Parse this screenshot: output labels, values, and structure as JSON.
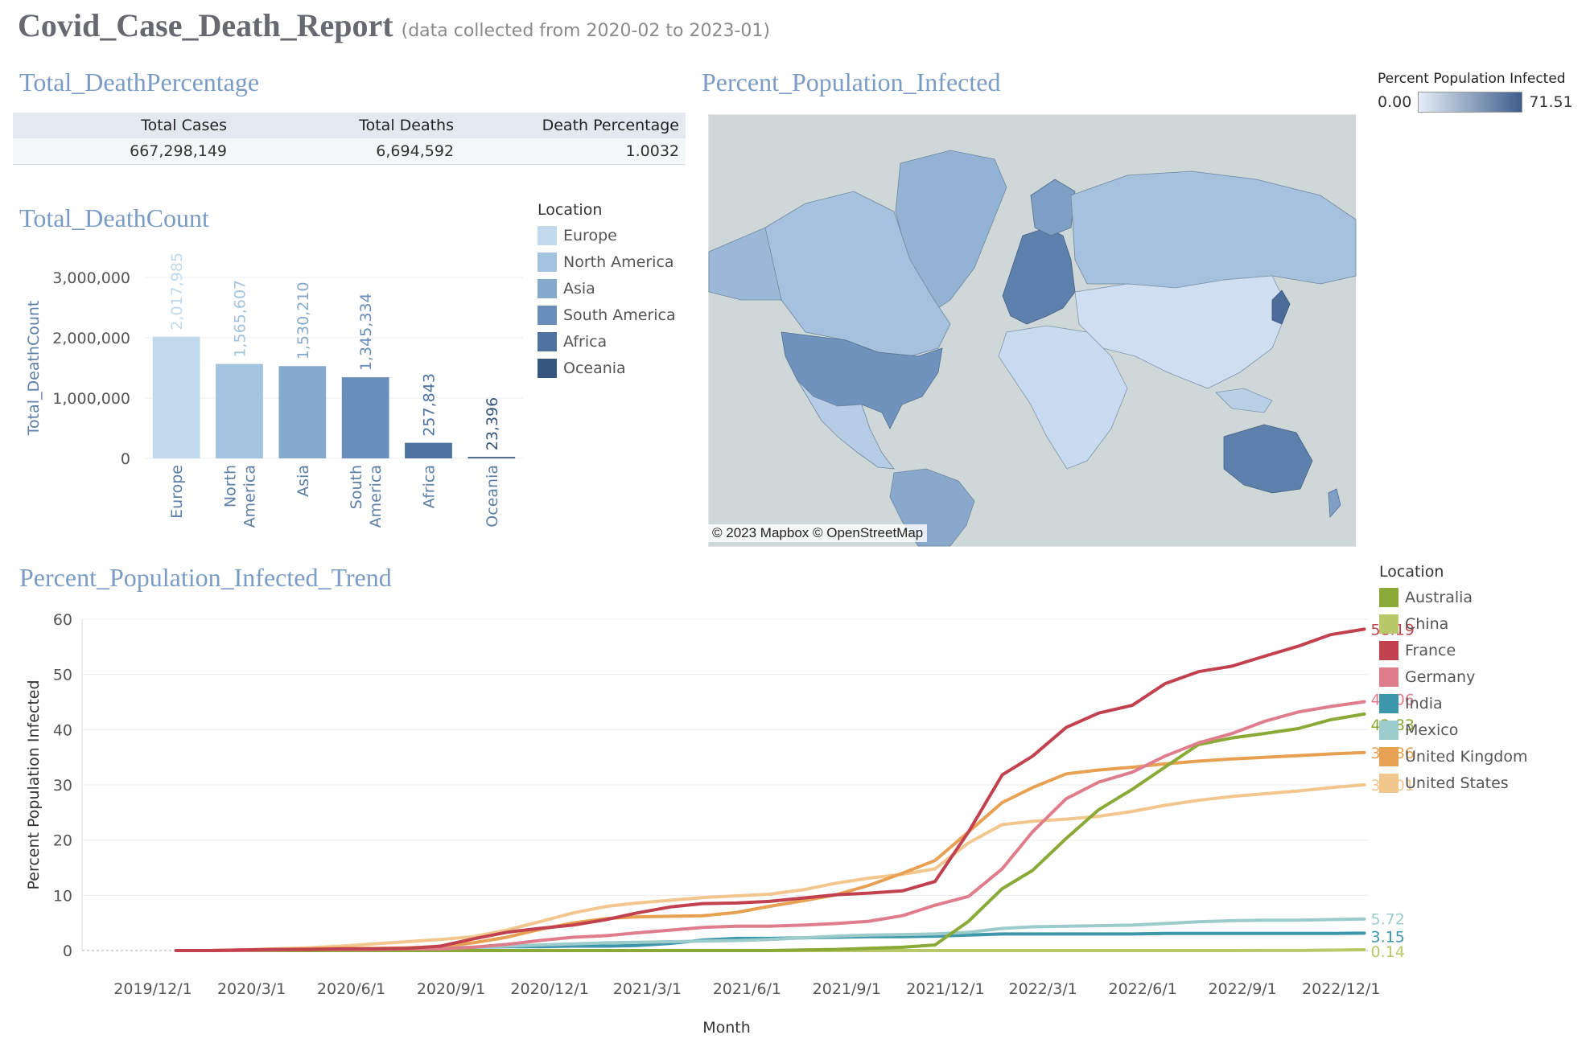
{
  "report": {
    "title": "Covid_Case_Death_Report",
    "subtitle": "(data collected from 2020-02 to 2023-01)"
  },
  "sections": {
    "death_percentage": "Total_DeathPercentage",
    "death_count": "Total_DeathCount",
    "population_infected": "Percent_Population_Infected",
    "trend": "Percent_Population_Infected_Trend"
  },
  "kpi": {
    "headers": [
      "Total Cases",
      "Total Deaths",
      "Death Percentage"
    ],
    "values": [
      "667,298,149",
      "6,694,592",
      "1.0032"
    ]
  },
  "map": {
    "credit": "© 2023 Mapbox © OpenStreetMap",
    "legend_title": "Percent Population Infected",
    "legend_min": "0.00",
    "legend_max": "71.51",
    "colors": {
      "land_low": "#e6eef7",
      "land_high": "#3d5e8a",
      "water": "#cfd8d8"
    }
  },
  "bar_legend": {
    "title": "Location",
    "items": [
      {
        "label": "Europe",
        "color": "#c2d9ec"
      },
      {
        "label": "North America",
        "color": "#a3c3de"
      },
      {
        "label": "Asia",
        "color": "#86a9ce"
      },
      {
        "label": "South America",
        "color": "#6a8ebb"
      },
      {
        "label": "Africa",
        "color": "#4f72a2"
      },
      {
        "label": "Oceania",
        "color": "#35567f"
      }
    ]
  },
  "line_legend": {
    "title": "Location",
    "items": [
      {
        "label": "Australia",
        "color": "#8aa937"
      },
      {
        "label": "China",
        "color": "#b9c969"
      },
      {
        "label": "France",
        "color": "#c2414f"
      },
      {
        "label": "Germany",
        "color": "#e07d8d"
      },
      {
        "label": "India",
        "color": "#3d97aa"
      },
      {
        "label": "Mexico",
        "color": "#9ccbcc"
      },
      {
        "label": "United Kingdom",
        "color": "#e8a152"
      },
      {
        "label": "United States",
        "color": "#f2c78e"
      }
    ]
  },
  "chart_data": [
    {
      "type": "bar",
      "ylabel": "Total_DeathCount",
      "categories": [
        "Europe",
        "North\nAmerica",
        "Asia",
        "South\nAmerica",
        "Africa",
        "Oceania"
      ],
      "values": [
        2017985,
        1565607,
        1530210,
        1345334,
        257843,
        23396
      ],
      "value_labels": [
        "2,017,985",
        "1,565,607",
        "1,530,210",
        "1,345,334",
        "257,843",
        "23,396"
      ],
      "colors": [
        "#c2d9ec",
        "#a3c3de",
        "#86a9ce",
        "#6a8ebb",
        "#4f72a2",
        "#35567f"
      ],
      "label_colors": [
        "#c2d9ec",
        "#a3c3de",
        "#86a9ce",
        "#6a8ebb",
        "#4f72a2",
        "#35567f"
      ],
      "ylim": [
        0,
        3000000
      ],
      "yticks": [
        0,
        1000000,
        2000000,
        3000000
      ],
      "ytick_labels": [
        "0",
        "1,000,000",
        "2,000,000",
        "3,000,000"
      ],
      "grid": true
    },
    {
      "type": "line",
      "xlabel": "Month",
      "ylabel": "Percent Population Infected",
      "x": [
        "2020-01",
        "2020-02",
        "2020-03",
        "2020-04",
        "2020-05",
        "2020-06",
        "2020-07",
        "2020-08",
        "2020-09",
        "2020-10",
        "2020-11",
        "2020-12",
        "2021-01",
        "2021-02",
        "2021-03",
        "2021-04",
        "2021-05",
        "2021-06",
        "2021-07",
        "2021-08",
        "2021-09",
        "2021-10",
        "2021-11",
        "2021-12",
        "2022-01",
        "2022-02",
        "2022-03",
        "2022-04",
        "2022-05",
        "2022-06",
        "2022-07",
        "2022-08",
        "2022-09",
        "2022-10",
        "2022-11",
        "2022-12",
        "2023-01"
      ],
      "xticks": [
        "2019-12",
        "2020-03",
        "2020-06",
        "2020-09",
        "2020-12",
        "2021-03",
        "2021-06",
        "2021-09",
        "2021-12",
        "2022-03",
        "2022-06",
        "2022-09",
        "2022-12"
      ],
      "xtick_labels": [
        "2019/12/1",
        "2020/3/1",
        "2020/6/1",
        "2020/9/1",
        "2020/12/1",
        "2021/3/1",
        "2021/6/1",
        "2021/9/1",
        "2021/12/1",
        "2022/3/1",
        "2022/6/1",
        "2022/9/1",
        "2022/12/1"
      ],
      "ylim": [
        0,
        60
      ],
      "yticks": [
        0,
        10,
        20,
        30,
        40,
        50,
        60
      ],
      "grid": true,
      "series": [
        {
          "name": "France",
          "color": "#c2414f",
          "end_label": "58.19",
          "values": [
            0,
            0,
            0.1,
            0.2,
            0.2,
            0.3,
            0.3,
            0.4,
            0.8,
            2.1,
            3.3,
            4.0,
            4.6,
            5.6,
            6.8,
            7.9,
            8.5,
            8.6,
            8.9,
            9.5,
            10.1,
            10.4,
            10.8,
            12.5,
            21.5,
            31.8,
            35.2,
            40.4,
            43.0,
            44.4,
            48.3,
            50.5,
            51.5,
            53.3,
            55.1,
            57.2,
            58.19
          ]
        },
        {
          "name": "Germany",
          "color": "#e07d8d",
          "end_label": "45.06",
          "values": [
            0,
            0,
            0,
            0.1,
            0.2,
            0.2,
            0.2,
            0.3,
            0.3,
            0.6,
            1.1,
            1.8,
            2.4,
            2.7,
            3.2,
            3.7,
            4.2,
            4.4,
            4.4,
            4.6,
            4.9,
            5.3,
            6.3,
            8.2,
            9.8,
            14.8,
            21.5,
            27.5,
            30.5,
            32.3,
            35.2,
            37.6,
            39.3,
            41.5,
            43.2,
            44.2,
            45.06
          ]
        },
        {
          "name": "Australia",
          "color": "#8aa937",
          "end_label": "42.83",
          "values": [
            0,
            0,
            0,
            0,
            0,
            0,
            0,
            0,
            0,
            0,
            0,
            0,
            0,
            0,
            0,
            0,
            0,
            0,
            0,
            0.1,
            0.2,
            0.4,
            0.6,
            1.0,
            5.3,
            11.2,
            14.5,
            20.3,
            25.5,
            29.2,
            33.2,
            37.3,
            38.5,
            39.3,
            40.2,
            41.8,
            42.83
          ]
        },
        {
          "name": "United Kingdom",
          "color": "#e8a152",
          "end_label": "35.86",
          "values": [
            0,
            0,
            0.1,
            0.2,
            0.3,
            0.4,
            0.4,
            0.5,
            0.7,
            1.4,
            2.4,
            3.8,
            5.0,
            5.8,
            6.1,
            6.2,
            6.3,
            6.9,
            8.0,
            9.0,
            10.1,
            11.8,
            14.0,
            16.3,
            21.5,
            26.8,
            29.5,
            32.0,
            32.7,
            33.2,
            33.8,
            34.3,
            34.7,
            35.0,
            35.3,
            35.6,
            35.86
          ]
        },
        {
          "name": "United States",
          "color": "#f2c78e",
          "end_label": "30.01",
          "values": [
            0,
            0,
            0.1,
            0.3,
            0.5,
            0.8,
            1.2,
            1.6,
            2.0,
            2.5,
            3.7,
            5.2,
            6.8,
            8.0,
            8.6,
            9.1,
            9.6,
            9.9,
            10.2,
            11.0,
            12.2,
            13.1,
            13.8,
            14.8,
            19.5,
            22.8,
            23.4,
            23.8,
            24.3,
            25.2,
            26.3,
            27.2,
            27.9,
            28.4,
            28.9,
            29.5,
            30.01
          ]
        },
        {
          "name": "Mexico",
          "color": "#9ccbcc",
          "end_label": "5.72",
          "values": [
            0,
            0,
            0,
            0,
            0.1,
            0.2,
            0.3,
            0.4,
            0.5,
            0.6,
            0.8,
            1.0,
            1.2,
            1.4,
            1.5,
            1.6,
            1.7,
            1.8,
            2.0,
            2.3,
            2.6,
            2.8,
            2.9,
            3.0,
            3.3,
            4.0,
            4.3,
            4.4,
            4.5,
            4.6,
            4.9,
            5.2,
            5.4,
            5.5,
            5.5,
            5.6,
            5.72
          ]
        },
        {
          "name": "India",
          "color": "#3d97aa",
          "end_label": "3.15",
          "values": [
            0,
            0,
            0,
            0,
            0,
            0,
            0.1,
            0.2,
            0.4,
            0.6,
            0.7,
            0.7,
            0.8,
            0.8,
            0.9,
            1.3,
            1.9,
            2.2,
            2.2,
            2.3,
            2.4,
            2.5,
            2.5,
            2.6,
            2.8,
            3.0,
            3.0,
            3.0,
            3.0,
            3.0,
            3.1,
            3.1,
            3.1,
            3.1,
            3.1,
            3.1,
            3.15
          ]
        },
        {
          "name": "China",
          "color": "#b9c969",
          "end_label": "0.14",
          "values": [
            0,
            0,
            0,
            0,
            0,
            0,
            0,
            0,
            0,
            0,
            0,
            0,
            0,
            0,
            0,
            0,
            0,
            0,
            0,
            0,
            0,
            0,
            0,
            0,
            0,
            0,
            0,
            0,
            0,
            0,
            0,
            0,
            0,
            0.01,
            0.02,
            0.08,
            0.14
          ]
        }
      ]
    }
  ]
}
